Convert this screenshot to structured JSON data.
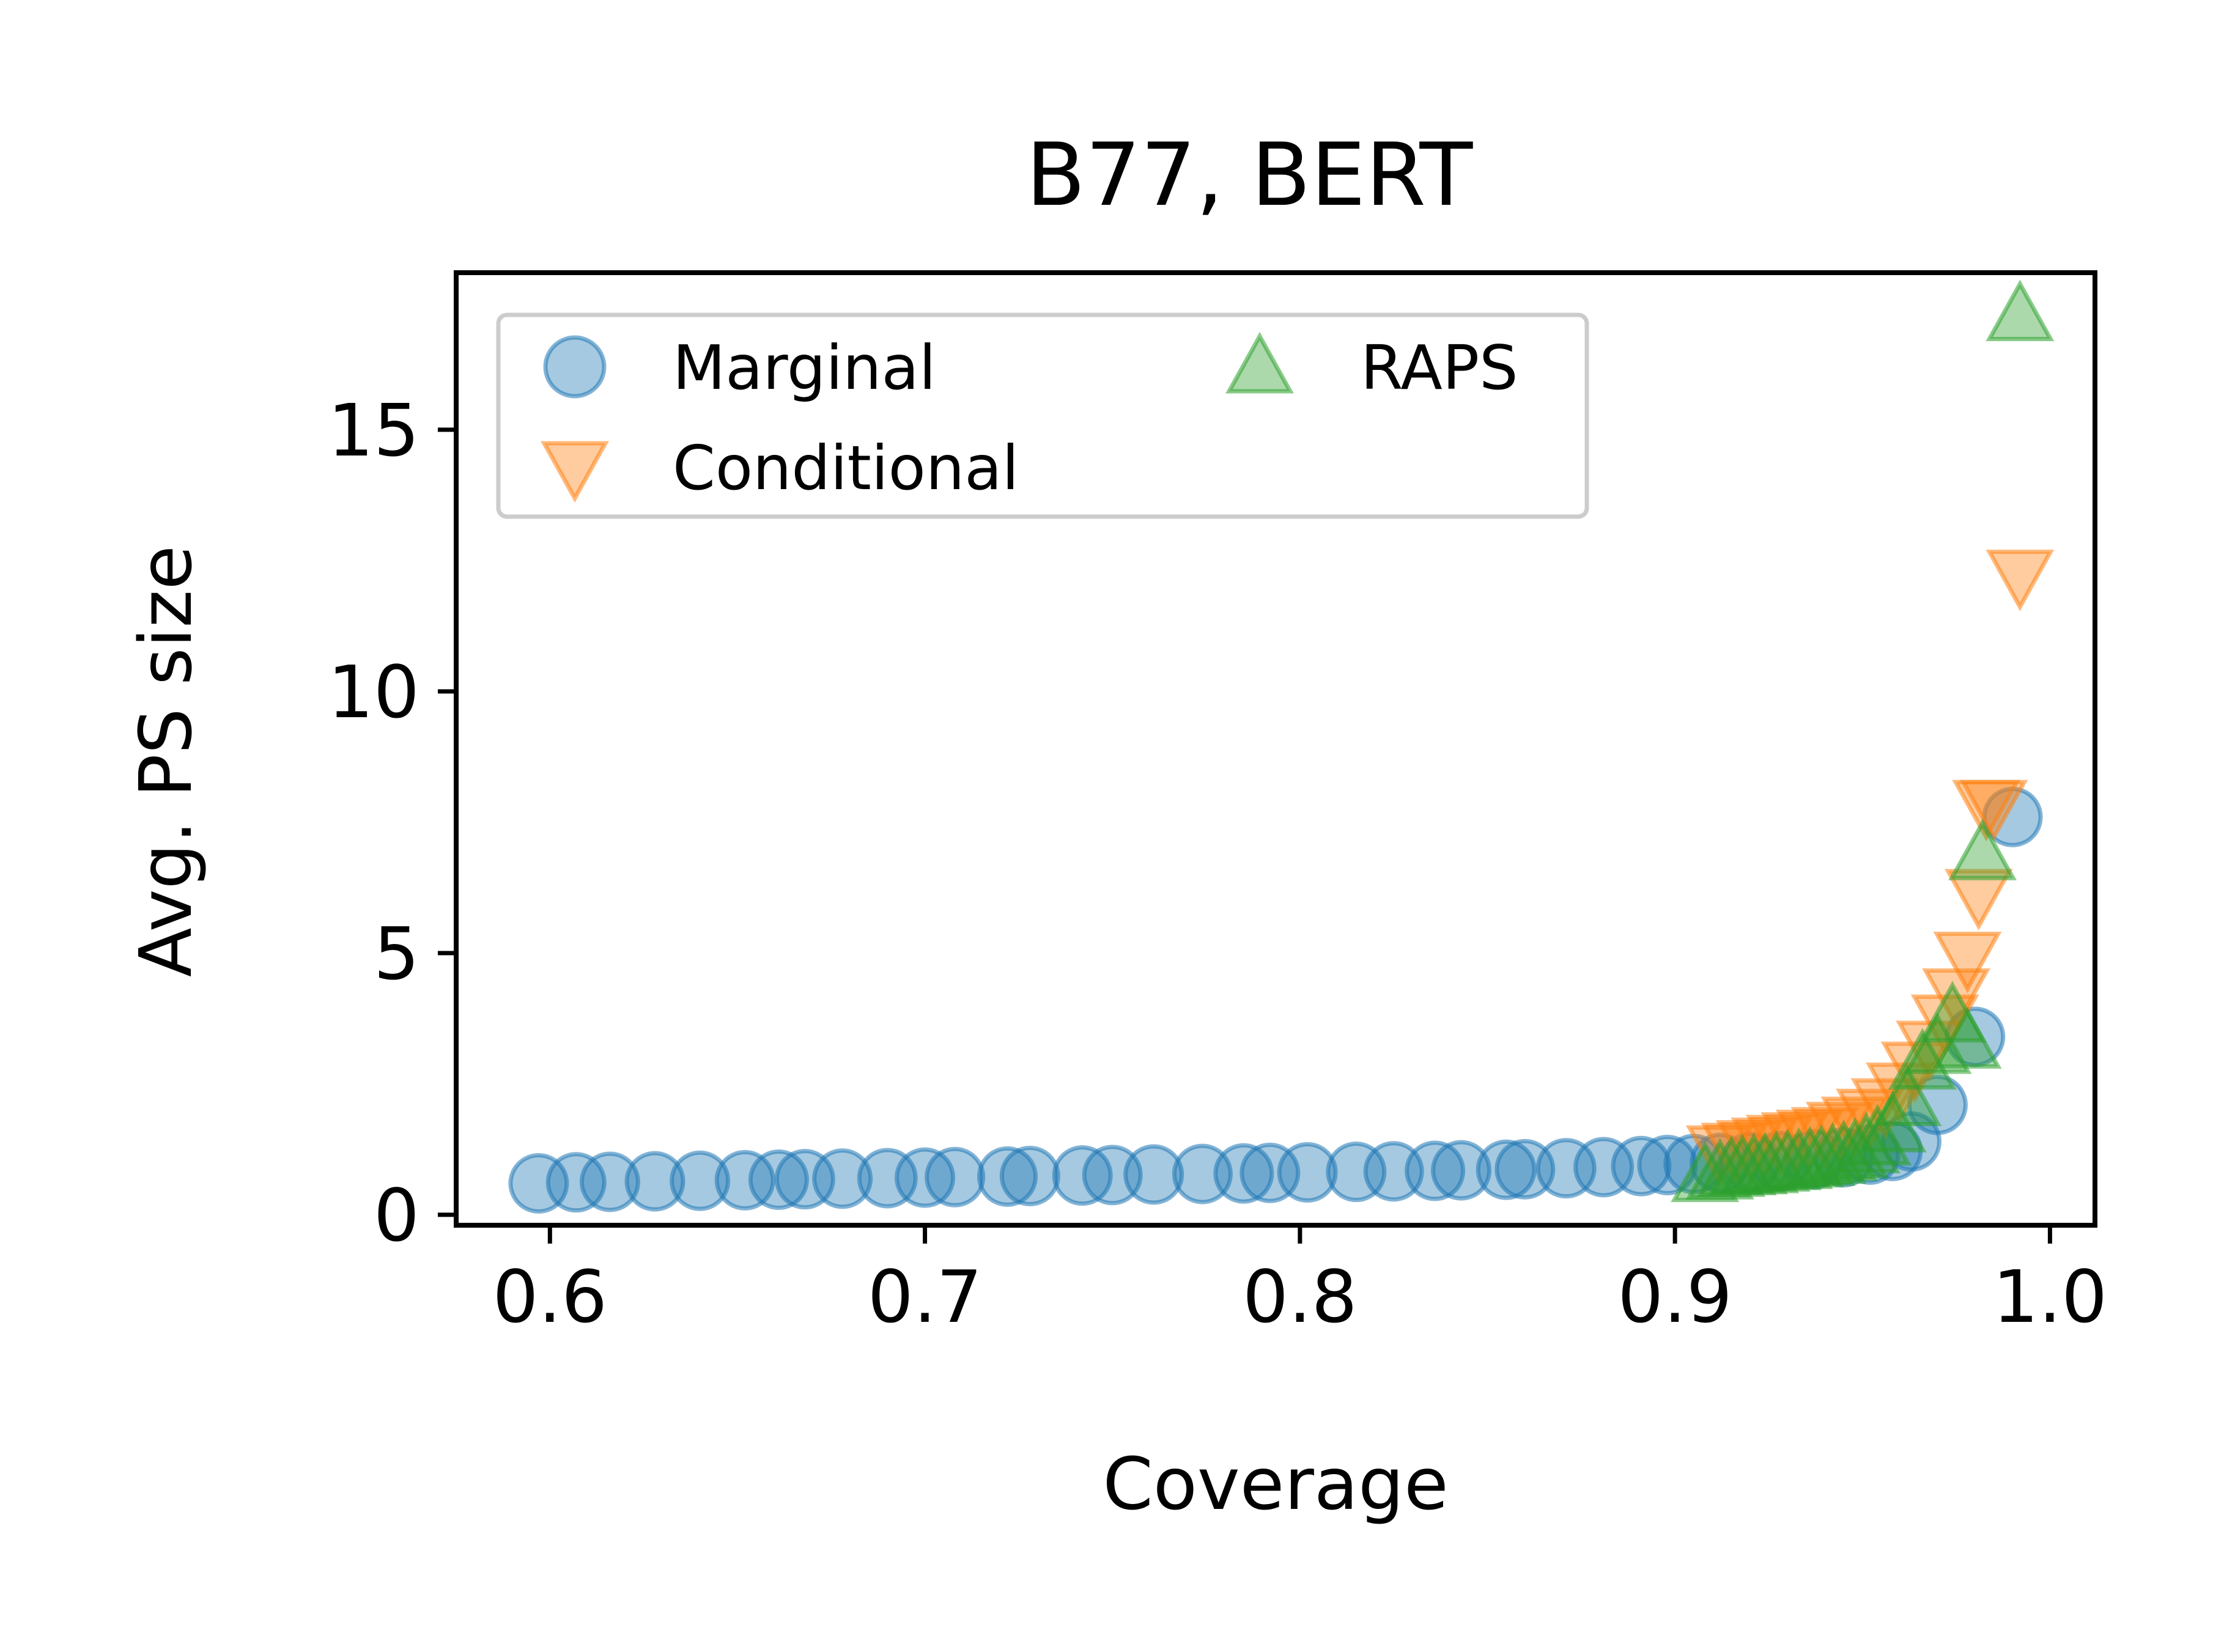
{
  "chart_data": {
    "type": "scatter",
    "title": "B77, BERT",
    "xlabel": "Coverage",
    "ylabel": "Avg. PS size",
    "xlim": [
      0.575,
      1.012
    ],
    "ylim": [
      -0.2,
      18
    ],
    "xticks": [
      0.6,
      0.7,
      0.8,
      0.9,
      1.0
    ],
    "xtick_labels": [
      "0.6",
      "0.7",
      "0.8",
      "0.9",
      "1.0"
    ],
    "yticks": [
      0,
      5,
      10,
      15
    ],
    "ytick_labels": [
      "0",
      "5",
      "10",
      "15"
    ],
    "grid": false,
    "legend_placement": "upper-left, 2 columns",
    "series": [
      {
        "name": "Marginal",
        "marker": "circle",
        "color": "#1f77b4",
        "x": [
          0.597,
          0.607,
          0.616,
          0.628,
          0.64,
          0.652,
          0.661,
          0.668,
          0.678,
          0.69,
          0.7,
          0.708,
          0.722,
          0.728,
          0.742,
          0.75,
          0.761,
          0.774,
          0.785,
          0.792,
          0.802,
          0.815,
          0.825,
          0.836,
          0.843,
          0.855,
          0.86,
          0.871,
          0.881,
          0.891,
          0.898,
          0.905,
          0.912,
          0.92,
          0.928,
          0.937,
          0.945,
          0.952,
          0.958,
          0.963,
          0.97,
          0.98,
          0.99
        ],
        "y": [
          0.6,
          0.62,
          0.63,
          0.64,
          0.65,
          0.66,
          0.67,
          0.68,
          0.69,
          0.7,
          0.71,
          0.72,
          0.73,
          0.74,
          0.75,
          0.76,
          0.77,
          0.78,
          0.79,
          0.8,
          0.81,
          0.82,
          0.83,
          0.84,
          0.85,
          0.86,
          0.87,
          0.89,
          0.91,
          0.93,
          0.95,
          0.97,
          0.99,
          1.01,
          1.03,
          1.06,
          1.1,
          1.15,
          1.22,
          1.4,
          2.1,
          3.4,
          7.6
        ]
      },
      {
        "name": "Conditional",
        "marker": "triangle-down",
        "color": "#ff7f0e",
        "x": [
          0.912,
          0.916,
          0.92,
          0.924,
          0.928,
          0.932,
          0.936,
          0.94,
          0.944,
          0.948,
          0.952,
          0.956,
          0.96,
          0.964,
          0.968,
          0.972,
          0.975,
          0.978,
          0.981,
          0.983,
          0.985,
          0.992
        ],
        "y": [
          1.2,
          1.25,
          1.3,
          1.35,
          1.4,
          1.45,
          1.5,
          1.55,
          1.65,
          1.75,
          1.9,
          2.1,
          2.4,
          2.8,
          3.2,
          3.7,
          4.2,
          4.9,
          6.1,
          7.8,
          7.8,
          12.2
        ]
      },
      {
        "name": "RAPS",
        "marker": "triangle-up",
        "color": "#2ca02c",
        "x": [
          0.908,
          0.912,
          0.915,
          0.918,
          0.921,
          0.924,
          0.927,
          0.93,
          0.933,
          0.936,
          0.939,
          0.942,
          0.945,
          0.948,
          0.951,
          0.954,
          0.958,
          0.962,
          0.966,
          0.97,
          0.974,
          0.978,
          0.982,
          0.992
        ],
        "y": [
          0.75,
          0.8,
          0.85,
          0.88,
          0.9,
          0.92,
          0.95,
          0.98,
          1.0,
          1.03,
          1.06,
          1.1,
          1.15,
          1.2,
          1.3,
          1.45,
          1.7,
          2.2,
          2.9,
          3.2,
          3.8,
          3.3,
          6.9,
          17.2
        ]
      }
    ]
  }
}
